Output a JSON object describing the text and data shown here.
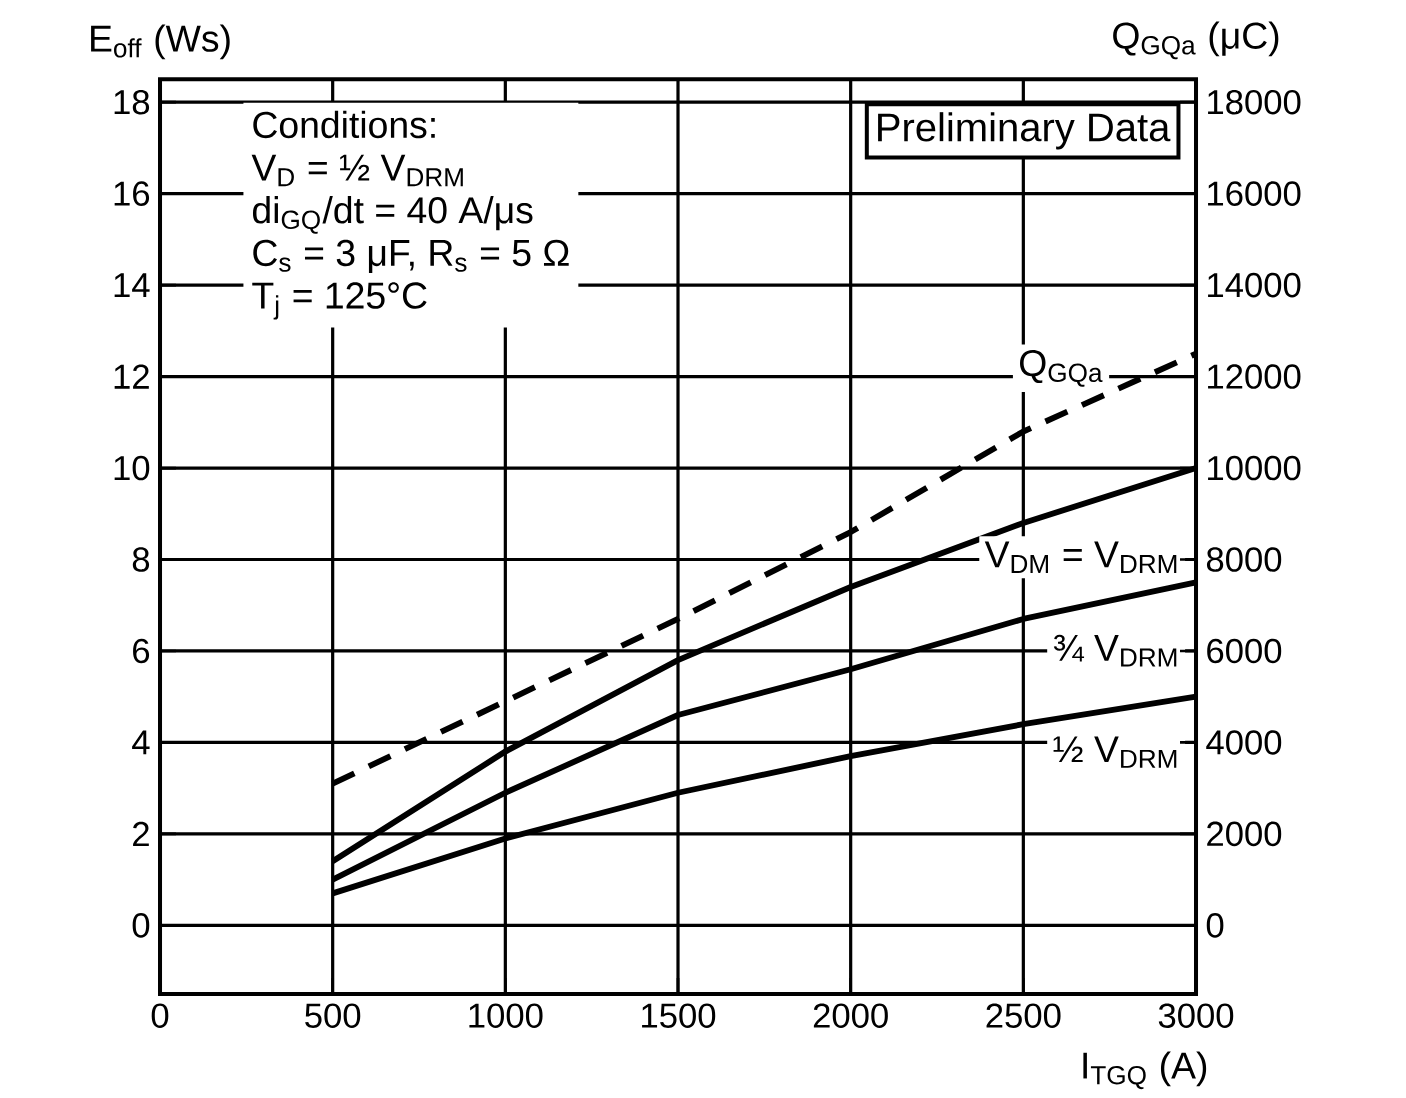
{
  "chart_data": {
    "type": "line",
    "xlabel": "I$_{TGQ}$ (A)",
    "ylabel": "E$_{off}$ (Ws)",
    "y2label": "Q$_{GQa}$ (μC)",
    "x": [
      500,
      1000,
      1500,
      2000,
      2500,
      3000
    ],
    "series": [
      {
        "name": "Q$_{GQa}$",
        "color": "#000000",
        "axis": "y2",
        "line_style": "dashed",
        "values": [
          3100,
          4900,
          6700,
          8600,
          10800,
          12500
        ]
      },
      {
        "name": "V$_{DM}$ = V$_{DRM}$",
        "color": "#000000",
        "values": [
          1.4,
          3.8,
          5.8,
          7.4,
          8.8,
          10
        ]
      },
      {
        "name": "¾ V$_{DRM}$",
        "color": "#000000",
        "values": [
          1.0,
          2.9,
          4.6,
          5.6,
          6.7,
          7.5
        ]
      },
      {
        "name": "½ V$_{DRM}$",
        "color": "#000000",
        "values": [
          0.7,
          1.9,
          2.9,
          3.7,
          4.4,
          5.0
        ]
      }
    ],
    "xlim": [
      0,
      3000
    ],
    "xticks": [
      0,
      500,
      1000,
      1500,
      2000,
      2500,
      3000
    ],
    "ylim": [
      -1.5,
      18.5
    ],
    "yticks": [
      0,
      2,
      4,
      6,
      8,
      10,
      12,
      14,
      16,
      18
    ],
    "y2lim": [
      -1500,
      18500
    ],
    "y2ticks": [
      0,
      2000,
      4000,
      6000,
      8000,
      10000,
      12000,
      14000,
      16000,
      18000
    ],
    "grid": true,
    "line_style": "solid",
    "marker": "none",
    "annotations": [
      "Conditions:",
      "V$_{D}$ = ½ V$_{DRM}$",
      "di$_{GQ}$/dt = 40 A/μs",
      "C$_{s}$ = 3 μF, R$_{s}$ = 5 Ω",
      "T$_{j}$ = 125°C",
      "Preliminary Data"
    ]
  }
}
